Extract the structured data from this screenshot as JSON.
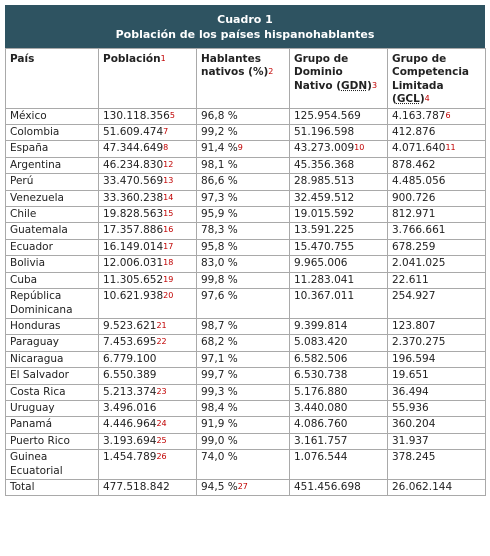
{
  "caption": {
    "title": "Cuadro 1",
    "subtitle": "Población de los países hispanohablantes"
  },
  "table": {
    "header": [
      {
        "text": "País"
      },
      {
        "text": "Población",
        "sup": "1"
      },
      {
        "text": "Hablantes nativos (%)",
        "sup": "2"
      },
      {
        "text": "Grupo de Dominio Nativo (",
        "abbr": "GDN",
        "after": ")",
        "sup": "3"
      },
      {
        "text": "Grupo de Competencia Limitada (",
        "abbr": "GCL",
        "after": ")",
        "sup": "4"
      }
    ],
    "rows": [
      [
        "México",
        {
          "text": "130.118.356",
          "sup": "5"
        },
        "96,8 %",
        "125.954.569",
        {
          "text": "4.163.787",
          "sup": "6"
        }
      ],
      [
        "Colombia",
        {
          "text": "51.609.474",
          "sup": "7"
        },
        "99,2 %",
        "51.196.598",
        "412.876"
      ],
      [
        "España",
        {
          "text": "47.344.649",
          "sup": "8"
        },
        {
          "text": "91,4 %",
          "sup": "9"
        },
        {
          "text": "43.273.009",
          "sup": "10"
        },
        {
          "text": "4.071.640",
          "sup": "11"
        }
      ],
      [
        "Argentina",
        {
          "text": "46.234.830",
          "sup": "12"
        },
        "98,1 %",
        "45.356.368",
        "878.462"
      ],
      [
        "Perú",
        {
          "text": "33.470.569",
          "sup": "13"
        },
        "86,6 %",
        "28.985.513",
        "4.485.056"
      ],
      [
        "Venezuela",
        {
          "text": "33.360.238",
          "sup": "14"
        },
        "97,3 %",
        "32.459.512",
        "900.726"
      ],
      [
        "Chile",
        {
          "text": "19.828.563",
          "sup": "15"
        },
        "95,9 %",
        "19.015.592",
        "812.971"
      ],
      [
        "Guatemala",
        {
          "text": "17.357.886",
          "sup": "16"
        },
        "78,3 %",
        "13.591.225",
        "3.766.661"
      ],
      [
        "Ecuador",
        {
          "text": "16.149.014",
          "sup": "17"
        },
        "95,8 %",
        "15.470.755",
        "678.259"
      ],
      [
        "Bolivia",
        {
          "text": "12.006.031",
          "sup": "18"
        },
        "83,0 %",
        "9.965.006",
        "2.041.025"
      ],
      [
        "Cuba",
        {
          "text": "11.305.652",
          "sup": "19"
        },
        "99,8 %",
        "11.283.041",
        "22.611"
      ],
      [
        "República Dominicana",
        {
          "text": "10.621.938",
          "sup": "20"
        },
        "97,6 %",
        "10.367.011",
        "254.927"
      ],
      [
        "Honduras",
        {
          "text": "9.523.621",
          "sup": "21"
        },
        "98,7 %",
        "9.399.814",
        "123.807"
      ],
      [
        "Paraguay",
        {
          "text": "7.453.695",
          "sup": "22"
        },
        "68,2 %",
        "5.083.420",
        "2.370.275"
      ],
      [
        "Nicaragua",
        "6.779.100",
        "97,1 %",
        "6.582.506",
        "196.594"
      ],
      [
        "El Salvador",
        "6.550.389",
        "99,7 %",
        "6.530.738",
        "19.651"
      ],
      [
        "Costa Rica",
        {
          "text": "5.213.374",
          "sup": "23"
        },
        "99,3 %",
        "5.176.880",
        "36.494"
      ],
      [
        "Uruguay",
        "3.496.016",
        "98,4 %",
        "3.440.080",
        "55.936"
      ],
      [
        "Panamá",
        {
          "text": "4.446.964",
          "sup": "24"
        },
        "91,9 %",
        "4.086.760",
        "360.204"
      ],
      [
        "Puerto Rico",
        {
          "text": "3.193.694",
          "sup": "25"
        },
        "99,0 %",
        "3.161.757",
        "31.937"
      ],
      [
        "Guinea Ecuatorial",
        {
          "text": "1.454.789",
          "sup": "26"
        },
        "74,0 %",
        "1.076.544",
        "378.245"
      ],
      [
        "Total",
        "477.518.842",
        {
          "text": "94,5 %",
          "sup": "27"
        },
        "451.456.698",
        "26.062.144"
      ]
    ]
  }
}
